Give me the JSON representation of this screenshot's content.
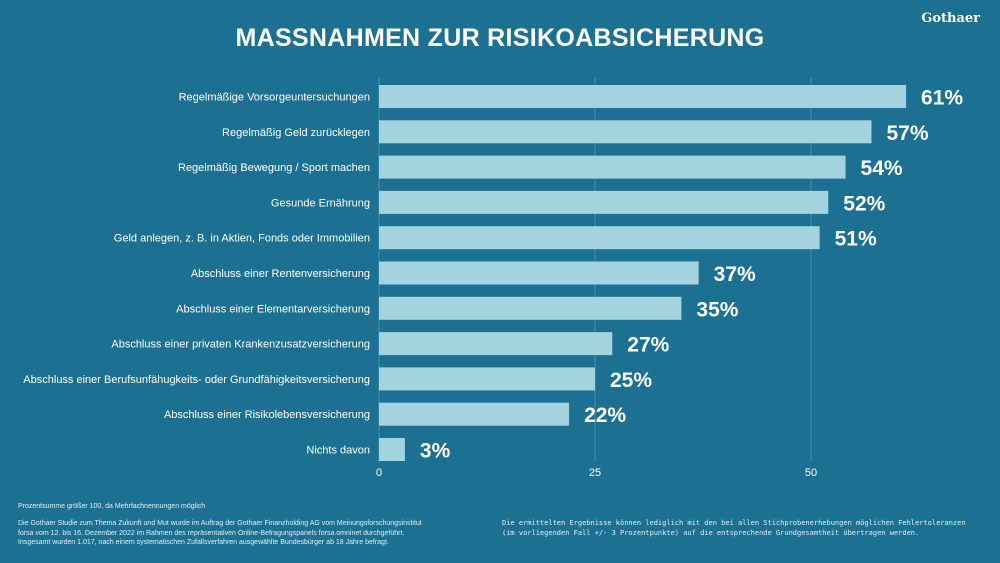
{
  "title": "MASSNAHMEN ZUR RISIKOABSICHERUNG",
  "logo": "Gothaer",
  "colors": {
    "background": "#1c7193",
    "bar": "#a3d3df",
    "text": "#ffffff",
    "grid": "#4a90ad"
  },
  "chart_data": {
    "type": "bar",
    "orientation": "horizontal",
    "categories": [
      "Regelmäßige Vorsorgeuntersuchungen",
      "Regelmäßig Geld zurücklegen",
      "Regelmäßig Bewegung / Sport machen",
      "Gesunde Ernährung",
      "Geld anlegen, z. B. in Aktien, Fonds oder Immobilien",
      "Abschluss einer Rentenversicherung",
      "Abschluss einer Elementarversicherung",
      "Abschluss einer privaten Krankenzusatzversicherung",
      "Abschluss einer Berufsunfähugkeits- oder Grundfähigkeitsversicherung",
      "Abschluss einer Risikolebensversicherung",
      "Nichts davon"
    ],
    "values": [
      61,
      57,
      54,
      52,
      51,
      37,
      35,
      27,
      25,
      22,
      3
    ],
    "value_labels": [
      "61%",
      "57%",
      "54%",
      "52%",
      "51%",
      "37%",
      "35%",
      "27%",
      "25%",
      "22%",
      "3%"
    ],
    "xlim": [
      0,
      72
    ],
    "ticks": [
      0,
      25,
      50
    ],
    "tick_labels": [
      "0",
      "25",
      "50"
    ],
    "grid": true
  },
  "footnotes": {
    "sum_note": "Prozentsumme größer 100, da Mehrfachnennungen möglich",
    "study_line1": "Die Gothaer Studie zum Thema Zukunft und Mut wurde im Auftrag der Gothaer Finanzholding AG vom Meinungsforschungsinstitut",
    "study_line2": "forsa vom 12. bis 16. Dezember 2022 im Rahmen des repräsentativen Online-Befragungspanels forsa.omninet durchgeführt.",
    "study_line3": "Insgesamt wurden 1.017, nach einem systematischen Zufallsverfahren ausgewählte Bundesbürger ab 18 Jahre befragt.",
    "tolerance": "Die ermittelten Ergebnisse können lediglich mit den bei allen Stichprobenerhebungen möglichen Fehlertoleranzen (im vorliegenden Fall +/- 3 Prozentpunkte) auf die entsprechende Grundgesamtheit übertragen werden."
  }
}
